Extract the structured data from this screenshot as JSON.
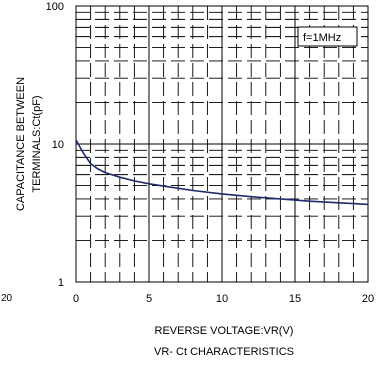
{
  "chart_data": {
    "type": "line",
    "title": "VR- Ct CHARACTERISTICS",
    "xlabel": "REVERSE VOLTAGE:VR(V)",
    "ylabel_line1": "CAPACITANCE BETWEEN",
    "ylabel_line2": "TERMINALS:Ct(pF)",
    "xlim": [
      0,
      20
    ],
    "ylim": [
      1,
      100
    ],
    "yscale": "log",
    "x_ticks": [
      0,
      5,
      10,
      15,
      20
    ],
    "x_tick_labels": [
      "0",
      "5",
      "10",
      "15",
      "20"
    ],
    "y_ticks": [
      1,
      10,
      100
    ],
    "y_tick_labels": [
      "1",
      "10",
      "100"
    ],
    "grid": true,
    "annotation": "f=1MHz",
    "left_edge_label": "20",
    "series": [
      {
        "color": "#1f2a6b",
        "x": [
          0,
          0.5,
          1,
          1.5,
          2,
          3,
          4,
          5,
          6,
          8,
          10,
          12,
          14,
          16,
          18,
          19,
          20
        ],
        "y": [
          10.7,
          8.6,
          7.2,
          6.6,
          6.2,
          5.75,
          5.4,
          5.15,
          4.95,
          4.6,
          4.35,
          4.15,
          4.0,
          3.85,
          3.75,
          3.7,
          3.65
        ]
      }
    ]
  }
}
